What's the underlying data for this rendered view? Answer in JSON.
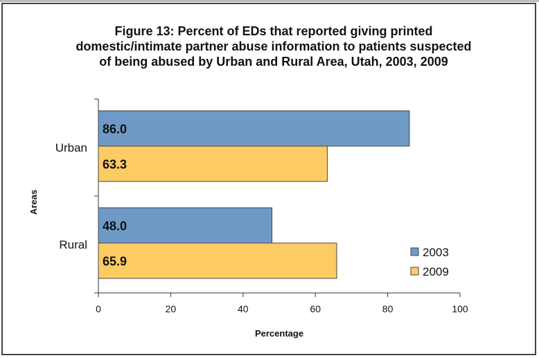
{
  "chart_data": {
    "type": "bar",
    "orientation": "horizontal",
    "title": "Figure 13: Percent of EDs that reported giving printed domestic/intimate partner abuse information to patients suspected of being abused by Urban and Rural Area, Utah, 2003, 2009",
    "xlabel": "Percentage",
    "ylabel": "Areas",
    "categories": [
      "Urban",
      "Rural"
    ],
    "series": [
      {
        "name": "2003",
        "values": [
          86.0,
          48.0
        ],
        "labels": [
          "86.0",
          "48.0"
        ],
        "color": "#6f9ac8"
      },
      {
        "name": "2009",
        "values": [
          63.3,
          65.9
        ],
        "labels": [
          "63.3",
          "65.9"
        ],
        "color": "#fdcb63"
      }
    ],
    "xlim": [
      0,
      100
    ],
    "xticks": [
      0,
      20,
      40,
      60,
      80,
      100
    ],
    "grid": false,
    "legend": "bottom-right"
  }
}
